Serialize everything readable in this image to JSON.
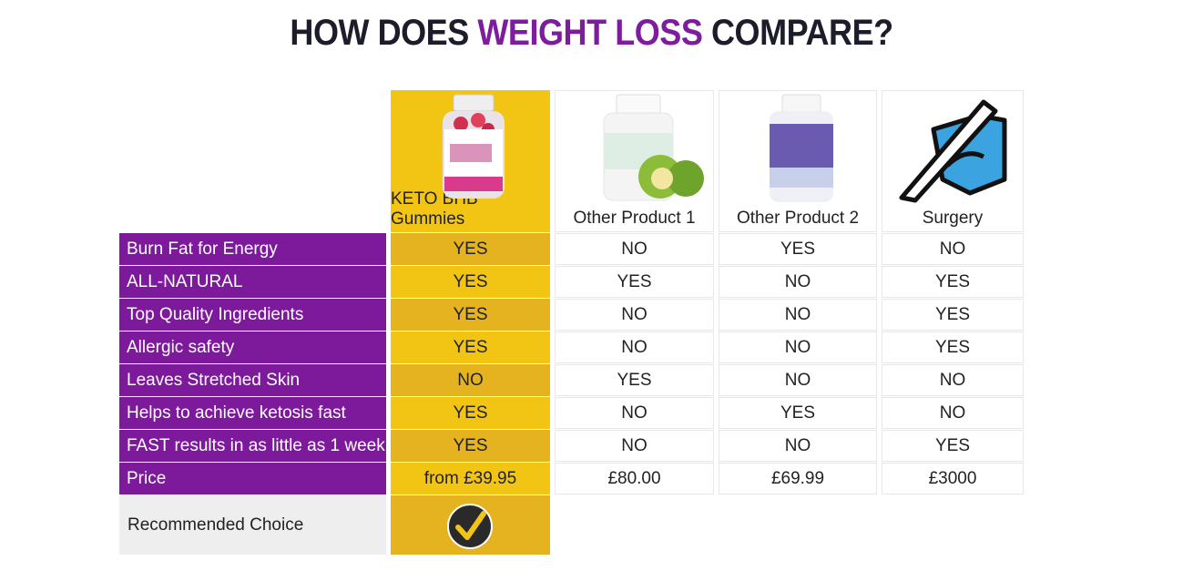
{
  "header": {
    "title_parts": [
      "HOW DOES",
      "WEIGHT LOSS",
      "COMPARE?"
    ]
  },
  "table": {
    "columns": [
      "KETO BHB Gummies",
      "Other Product 1",
      "Other Product 2",
      "Surgery"
    ],
    "rows": [
      {
        "label": "Burn Fat for Energy",
        "cells": [
          "YES",
          "NO",
          "YES",
          "NO"
        ]
      },
      {
        "label": "ALL-NATURAL",
        "cells": [
          "YES",
          "YES",
          "NO",
          "YES"
        ]
      },
      {
        "label": "Top Quality Ingredients",
        "cells": [
          "YES",
          "NO",
          "NO",
          "YES"
        ]
      },
      {
        "label": "Allergic safety",
        "cells": [
          "YES",
          "NO",
          "NO",
          "YES"
        ]
      },
      {
        "label": "Leaves Stretched Skin",
        "cells": [
          "NO",
          "YES",
          "NO",
          "NO"
        ]
      },
      {
        "label": "Helps to achieve ketosis fast",
        "cells": [
          "YES",
          "NO",
          "YES",
          "NO"
        ]
      },
      {
        "label": "FAST results in as little as 1 week",
        "cells": [
          "YES",
          "NO",
          "NO",
          "YES"
        ]
      },
      {
        "label": "Price",
        "cells": [
          "from £39.95",
          "£80.00",
          "£69.99",
          "£3000"
        ]
      }
    ],
    "recommended_label": "Recommended Choice"
  }
}
